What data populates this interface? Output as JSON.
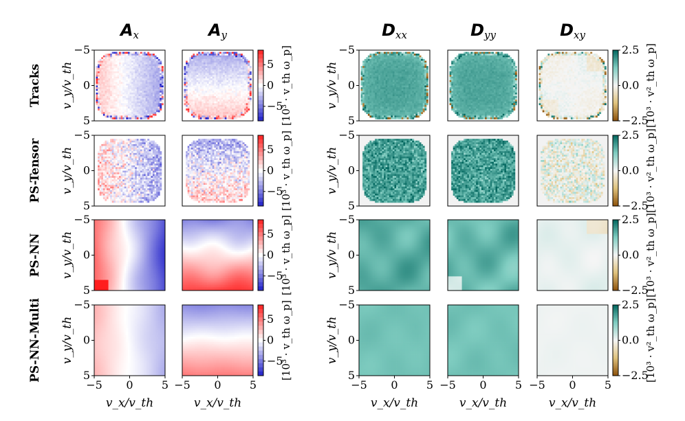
{
  "chart_data": {
    "type": "heatmap",
    "title": "",
    "columns": [
      {
        "key": "Ax",
        "head": "A",
        "sub": "x",
        "group": "A"
      },
      {
        "key": "Ay",
        "head": "A",
        "sub": "y",
        "group": "A"
      },
      {
        "key": "Dxx",
        "head": "D",
        "sub": "xx",
        "group": "D"
      },
      {
        "key": "Dyy",
        "head": "D",
        "sub": "yy",
        "group": "D"
      },
      {
        "key": "Dxy",
        "head": "D",
        "sub": "xy",
        "group": "Dxy"
      }
    ],
    "rows": [
      {
        "label": "Tracks",
        "pattern": "circle_noisy"
      },
      {
        "label": "PS-Tensor",
        "pattern": "rounded_very_noisy"
      },
      {
        "label": "PS-NN",
        "pattern": "smooth_full"
      },
      {
        "label": "PS-NN-Multi",
        "pattern": "smooth_uniform"
      }
    ],
    "xlabel": "v_x/v_th",
    "ylabel": "v_y/v_th",
    "xlim": [
      -5,
      5
    ],
    "ylim": [
      -5,
      5
    ],
    "x_ticks": [
      "−5",
      "0",
      "5"
    ],
    "y_ticks": [
      "−5",
      "0",
      "5"
    ],
    "colorbars": {
      "A": {
        "label": "[10³ · v_th ω_p]",
        "ticks": [
          "5",
          "0",
          "−5"
        ],
        "tick_values": [
          5,
          0,
          -5
        ],
        "range": [
          -8.5,
          8.5
        ],
        "colormap": "bwr"
      },
      "D": {
        "label": "[10³ · v²_th ω_p]",
        "ticks": [
          "2.5",
          "0.0",
          "−2.5"
        ],
        "tick_values": [
          2.5,
          0.0,
          -2.5
        ],
        "range": [
          -2.5,
          2.5
        ],
        "colormap": "BrBG"
      }
    },
    "colors": {
      "red": "#d62728",
      "blue": "#1f3fbf",
      "teal": "#3a9688",
      "brown": "#8c5a0b",
      "missing": "#f2f2f2"
    }
  }
}
